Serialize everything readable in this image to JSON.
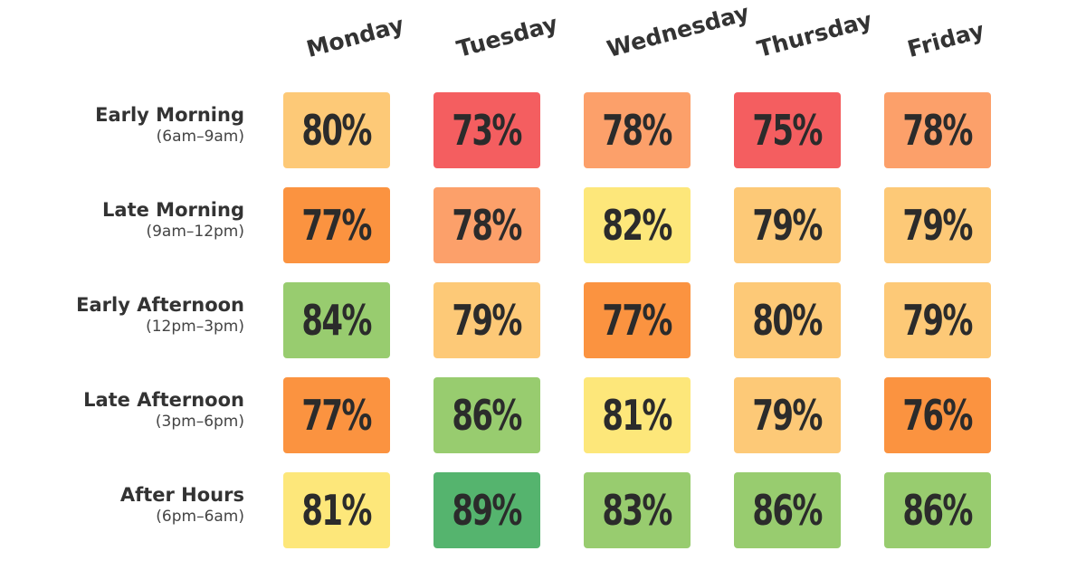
{
  "chart_data": {
    "type": "heatmap",
    "title": "",
    "columns": [
      "Monday",
      "Tuesday",
      "Wednesday",
      "Thursday",
      "Friday"
    ],
    "rows": [
      {
        "name": "Early Morning",
        "range": "(6am–9am)"
      },
      {
        "name": "Late Morning",
        "range": "(9am–12pm)"
      },
      {
        "name": "Early Afternoon",
        "range": "(12pm–3pm)"
      },
      {
        "name": "Late Afternoon",
        "range": "(3pm–6pm)"
      },
      {
        "name": "After Hours",
        "range": "(6pm–6am)"
      }
    ],
    "values": [
      [
        80,
        73,
        78,
        75,
        78
      ],
      [
        77,
        78,
        82,
        79,
        79
      ],
      [
        84,
        79,
        77,
        80,
        79
      ],
      [
        77,
        86,
        81,
        79,
        76
      ],
      [
        81,
        89,
        83,
        86,
        86
      ]
    ],
    "value_suffix": "%",
    "colors": {
      "73": "#f45e60",
      "75": "#f45e60",
      "76": "#fb9340",
      "77": "#fb9340",
      "78": "#fca06a",
      "79": "#fdc977",
      "80": "#fdc977",
      "81": "#fde77a",
      "82": "#fde77a",
      "83": "#98cc6f",
      "84": "#98cc6f",
      "86": "#98cc6f",
      "89": "#55b46e"
    }
  }
}
